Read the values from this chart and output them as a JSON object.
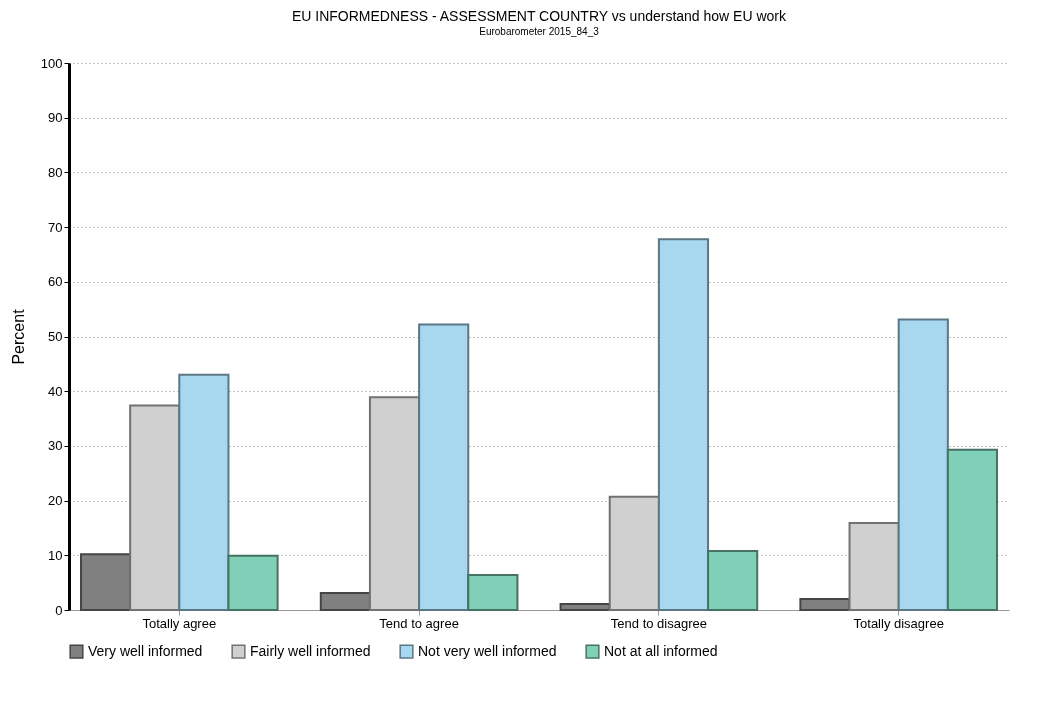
{
  "chart_data": {
    "type": "bar",
    "title": "EU INFORMEDNESS - ASSESSMENT COUNTRY vs understand how EU work",
    "subtitle": "Eurobarometer 2015_84_3",
    "ylabel": "Percent",
    "categories": [
      "Totally agree",
      "Tend to agree",
      "Tend to disagree",
      "Totally disagree"
    ],
    "series": [
      {
        "name": "Very well informed",
        "color": "#808080",
        "values": [
          10.2,
          3.1,
          1.1,
          2.0
        ]
      },
      {
        "name": "Fairly well informed",
        "color": "#d0d0d0",
        "values": [
          37.4,
          38.9,
          20.7,
          15.9
        ]
      },
      {
        "name": "Not very well informed",
        "color": "#a8d8f0",
        "values": [
          43.0,
          52.2,
          67.8,
          53.1
        ]
      },
      {
        "name": "Not at all informed",
        "color": "#80d0b8",
        "values": [
          9.9,
          6.4,
          10.8,
          29.3
        ]
      }
    ],
    "ylim": [
      0,
      100
    ],
    "yticks": [
      0,
      10,
      20,
      30,
      40,
      50,
      60,
      70,
      80,
      90,
      100
    ],
    "grid": "y",
    "legend": "bottom"
  }
}
